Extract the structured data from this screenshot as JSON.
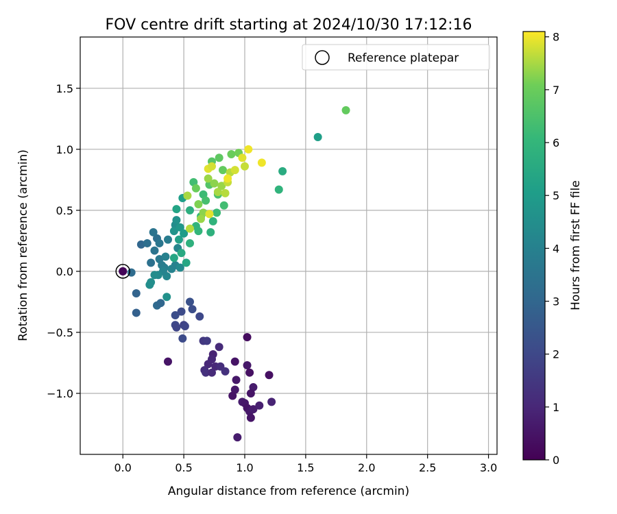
{
  "chart_data": {
    "type": "scatter",
    "title": "FOV centre drift starting at 2024/10/30 17:12:16",
    "xlabel": "Angular distance from reference (arcmin)",
    "ylabel": "Rotation from reference (arcmin)",
    "xlim": [
      -0.35,
      3.07
    ],
    "ylim": [
      -1.5,
      1.92
    ],
    "x_ticks": [
      0.0,
      0.5,
      1.0,
      1.5,
      2.0,
      2.5,
      3.0
    ],
    "x_tick_labels": [
      "0.0",
      "0.5",
      "1.0",
      "1.5",
      "2.0",
      "2.5",
      "3.0"
    ],
    "y_ticks": [
      -1.0,
      -0.5,
      0.0,
      0.5,
      1.0,
      1.5
    ],
    "y_tick_labels": [
      "−1.0",
      "−0.5",
      "0.0",
      "0.5",
      "1.0",
      "1.5"
    ],
    "grid": true,
    "legend": {
      "position": "top-right",
      "entries": [
        "Reference platepar"
      ]
    },
    "reference_point": {
      "x": 0.0,
      "y": 0.0,
      "hours": 0.1
    },
    "colorbar": {
      "label": "Hours from first FF file",
      "colormap": "viridis",
      "range": [
        0,
        8.1
      ],
      "ticks": [
        0,
        1,
        2,
        3,
        4,
        5,
        6,
        7,
        8
      ],
      "tick_labels": [
        "0",
        "1",
        "2",
        "3",
        "4",
        "5",
        "6",
        "7",
        "8"
      ]
    },
    "series": [
      {
        "points": [
          [
            0.0,
            0.0,
            0.1
          ],
          [
            1.02,
            -0.54,
            0.3
          ],
          [
            1.2,
            -0.85,
            0.4
          ],
          [
            0.37,
            -0.74,
            0.5
          ],
          [
            0.92,
            -0.74,
            0.5
          ],
          [
            1.02,
            -0.77,
            0.6
          ],
          [
            1.04,
            -0.83,
            0.4
          ],
          [
            0.93,
            -0.89,
            0.6
          ],
          [
            1.07,
            -0.95,
            0.7
          ],
          [
            1.05,
            -1.0,
            0.5
          ],
          [
            0.92,
            -0.97,
            0.6
          ],
          [
            0.9,
            -1.02,
            0.5
          ],
          [
            0.98,
            -1.07,
            0.7
          ],
          [
            1.0,
            -1.08,
            0.6
          ],
          [
            1.02,
            -1.12,
            0.5
          ],
          [
            1.04,
            -1.15,
            0.6
          ],
          [
            1.05,
            -1.2,
            0.5
          ],
          [
            1.07,
            -1.13,
            0.7
          ],
          [
            1.12,
            -1.1,
            0.8
          ],
          [
            1.22,
            -1.07,
            0.9
          ],
          [
            0.94,
            -1.36,
            0.7
          ],
          [
            0.74,
            -0.68,
            0.9
          ],
          [
            0.73,
            -0.72,
            1.0
          ],
          [
            0.79,
            -0.62,
            1.1
          ],
          [
            0.7,
            -0.76,
            1.0
          ],
          [
            0.67,
            -0.81,
            1.2
          ],
          [
            0.68,
            -0.83,
            1.3
          ],
          [
            0.73,
            -0.83,
            1.1
          ],
          [
            0.76,
            -0.78,
            1.0
          ],
          [
            0.8,
            -0.78,
            1.2
          ],
          [
            0.84,
            -0.82,
            1.3
          ],
          [
            0.66,
            -0.57,
            1.5
          ],
          [
            0.69,
            -0.57,
            1.6
          ],
          [
            0.5,
            -0.44,
            1.8
          ],
          [
            0.51,
            -0.45,
            1.9
          ],
          [
            0.43,
            -0.44,
            2.0
          ],
          [
            0.44,
            -0.46,
            1.9
          ],
          [
            0.49,
            -0.55,
            2.1
          ],
          [
            0.43,
            -0.36,
            2.2
          ],
          [
            0.48,
            -0.33,
            2.1
          ],
          [
            0.55,
            -0.25,
            2.3
          ],
          [
            0.57,
            -0.31,
            2.2
          ],
          [
            0.63,
            -0.37,
            2.0
          ],
          [
            0.11,
            -0.34,
            2.8
          ],
          [
            0.11,
            -0.18,
            2.9
          ],
          [
            0.28,
            -0.28,
            3.1
          ],
          [
            0.31,
            -0.26,
            3.0
          ],
          [
            0.07,
            -0.01,
            3.2
          ],
          [
            0.15,
            0.22,
            3.0
          ],
          [
            0.2,
            0.23,
            3.3
          ],
          [
            0.23,
            0.07,
            3.4
          ],
          [
            0.26,
            0.17,
            3.5
          ],
          [
            0.28,
            0.27,
            3.3
          ],
          [
            0.3,
            0.23,
            3.6
          ],
          [
            0.3,
            0.1,
            3.7
          ],
          [
            0.25,
            0.32,
            3.5
          ],
          [
            0.32,
            0.05,
            3.8
          ],
          [
            0.34,
            0.03,
            3.9
          ],
          [
            0.35,
            0.12,
            4.0
          ],
          [
            0.37,
            0.26,
            3.8
          ],
          [
            0.4,
            0.02,
            4.1
          ],
          [
            0.43,
            0.05,
            4.0
          ],
          [
            0.45,
            0.19,
            4.2
          ],
          [
            0.47,
            0.03,
            4.3
          ],
          [
            0.36,
            -0.04,
            4.2
          ],
          [
            0.33,
            0.0,
            4.1
          ],
          [
            0.29,
            -0.03,
            4.3
          ],
          [
            0.26,
            -0.03,
            4.4
          ],
          [
            0.22,
            -0.11,
            4.5
          ],
          [
            0.23,
            -0.09,
            4.5
          ],
          [
            0.36,
            -0.21,
            4.6
          ],
          [
            0.43,
            0.38,
            4.4
          ],
          [
            0.44,
            0.42,
            4.6
          ],
          [
            0.42,
            0.33,
            4.7
          ],
          [
            0.47,
            0.36,
            4.8
          ],
          [
            0.5,
            0.31,
            5.0
          ],
          [
            0.46,
            0.26,
            5.2
          ],
          [
            0.49,
            0.6,
            5.1
          ],
          [
            0.44,
            0.51,
            5.3
          ],
          [
            0.52,
            0.07,
            5.4
          ],
          [
            0.48,
            0.15,
            5.5
          ],
          [
            0.42,
            0.11,
            5.4
          ],
          [
            0.55,
            0.23,
            5.8
          ],
          [
            0.55,
            0.5,
            5.7
          ],
          [
            0.6,
            0.37,
            5.9
          ],
          [
            0.62,
            0.33,
            6.0
          ],
          [
            0.64,
            0.45,
            6.1
          ],
          [
            0.58,
            0.73,
            6.3
          ],
          [
            0.66,
            0.63,
            6.2
          ],
          [
            0.68,
            0.58,
            6.4
          ],
          [
            0.72,
            0.32,
            5.8
          ],
          [
            0.74,
            0.41,
            5.9
          ],
          [
            0.77,
            0.48,
            6.2
          ],
          [
            0.78,
            0.63,
            6.5
          ],
          [
            0.83,
            0.54,
            6.3
          ],
          [
            0.71,
            0.71,
            6.6
          ],
          [
            0.73,
            0.9,
            6.7
          ],
          [
            0.79,
            0.93,
            6.8
          ],
          [
            0.82,
            0.83,
            6.9
          ],
          [
            0.89,
            0.96,
            7.0
          ],
          [
            0.95,
            0.97,
            7.1
          ],
          [
            1.28,
            0.67,
            5.9
          ],
          [
            1.31,
            0.82,
            5.6
          ],
          [
            1.6,
            1.1,
            5.1
          ],
          [
            1.83,
            1.32,
            6.9
          ],
          [
            0.6,
            0.68,
            7.0
          ],
          [
            0.62,
            0.55,
            7.2
          ],
          [
            0.66,
            0.48,
            7.3
          ],
          [
            0.7,
            0.76,
            7.4
          ],
          [
            0.75,
            0.72,
            7.3
          ],
          [
            0.78,
            0.65,
            7.5
          ],
          [
            0.81,
            0.7,
            7.4
          ],
          [
            0.84,
            0.64,
            7.6
          ],
          [
            0.86,
            0.73,
            7.7
          ],
          [
            0.88,
            0.81,
            7.6
          ],
          [
            0.92,
            0.83,
            7.8
          ],
          [
            0.98,
            0.93,
            7.9
          ],
          [
            1.0,
            0.86,
            7.7
          ],
          [
            1.03,
            1.0,
            8.0
          ],
          [
            1.14,
            0.89,
            8.0
          ],
          [
            0.55,
            0.35,
            7.6
          ],
          [
            0.53,
            0.62,
            7.5
          ],
          [
            0.64,
            0.43,
            7.4
          ],
          [
            0.7,
            0.84,
            7.9
          ],
          [
            0.73,
            0.86,
            7.8
          ],
          [
            0.71,
            0.47,
            7.9
          ],
          [
            0.86,
            0.76,
            8.0
          ]
        ]
      }
    ]
  }
}
